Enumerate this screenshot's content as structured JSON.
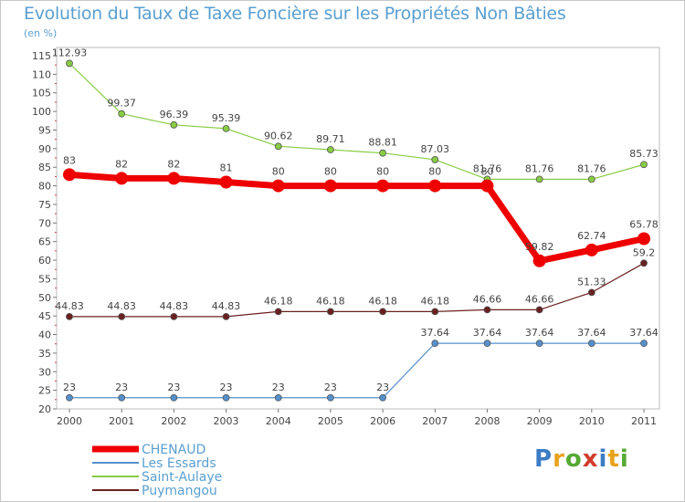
{
  "header": {
    "title": "Evolution du Taux de Taxe Foncière sur les Propriétés Non Bâties",
    "unit": "(en %)"
  },
  "logo": {
    "text": "Proxiti",
    "letters": [
      "P",
      "r",
      "o",
      "x",
      "i",
      "t",
      "i"
    ]
  },
  "chart_data": {
    "type": "line",
    "title": "Evolution du Taux de Taxe Foncière sur les Propriétés Non Bâties",
    "ylabel": "(en %)",
    "xlabel": "",
    "x": [
      "2000",
      "2001",
      "2002",
      "2003",
      "2004",
      "2005",
      "2006",
      "2007",
      "2008",
      "2009",
      "2010",
      "2011"
    ],
    "ylim": [
      20,
      115
    ],
    "yticks": [
      20,
      25,
      30,
      35,
      40,
      45,
      50,
      55,
      60,
      65,
      70,
      75,
      80,
      85,
      90,
      95,
      100,
      105,
      110,
      115
    ],
    "legend_position": "bottom-left",
    "series": [
      {
        "name": "CHENAUD",
        "color": "#ee0000",
        "values": [
          83,
          82,
          82,
          81,
          80,
          80,
          80,
          80,
          80,
          59.82,
          62.74,
          65.78
        ],
        "labels": [
          "83",
          "82",
          "82",
          "81",
          "80",
          "80",
          "80",
          "80",
          "80",
          "59.82",
          "62.74",
          "65.78"
        ]
      },
      {
        "name": "Les Essards",
        "color": "#5590cc",
        "values": [
          23,
          23,
          23,
          23,
          23,
          23,
          23,
          37.64,
          37.64,
          37.64,
          37.64,
          37.64
        ],
        "labels": [
          "23",
          "23",
          "23",
          "23",
          "23",
          "23",
          "23",
          "37.64",
          "37.64",
          "37.64",
          "37.64",
          "37.64"
        ]
      },
      {
        "name": "Saint-Aulaye",
        "color": "#88cc44",
        "values": [
          112.93,
          99.37,
          96.39,
          95.39,
          90.62,
          89.71,
          88.81,
          87.03,
          81.76,
          81.76,
          81.76,
          85.73
        ],
        "labels": [
          "112.93",
          "99.37",
          "96.39",
          "95.39",
          "90.62",
          "89.71",
          "88.81",
          "87.03",
          "81.76",
          "81.76",
          "81.76",
          "85.73"
        ]
      },
      {
        "name": "Puymangou",
        "color": "#6b2020",
        "values": [
          44.83,
          44.83,
          44.83,
          44.83,
          46.18,
          46.18,
          46.18,
          46.18,
          46.66,
          46.66,
          51.33,
          59.2
        ],
        "labels": [
          "44.83",
          "44.83",
          "44.83",
          "44.83",
          "46.18",
          "46.18",
          "46.18",
          "46.18",
          "46.66",
          "46.66",
          "51.33",
          "59.2"
        ]
      }
    ]
  }
}
